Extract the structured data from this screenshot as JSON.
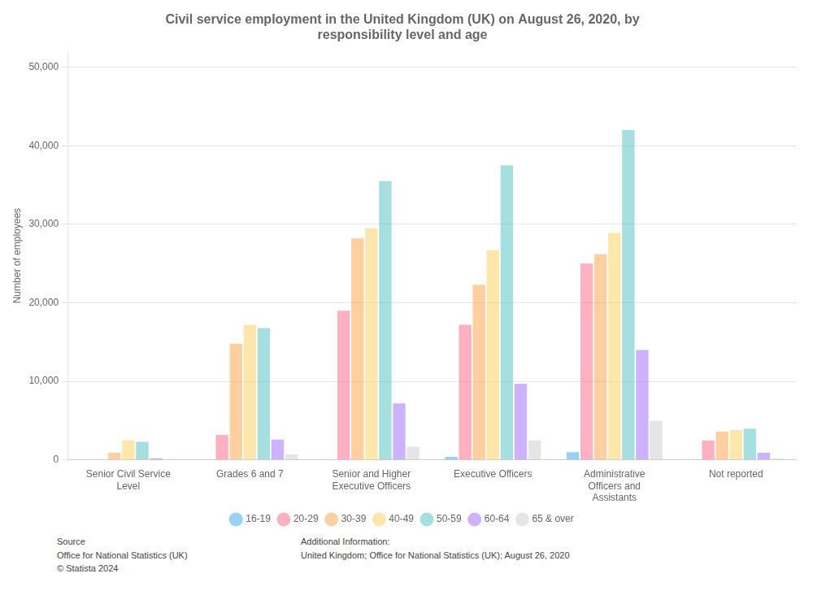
{
  "chart_data": {
    "type": "bar",
    "title": "Civil service employment in the United Kingdom (UK) on August 26, 2020, by\nresponsibility level and age",
    "y_label": "Number of employees",
    "categories": [
      "Senior Civil Service\nLevel",
      "Grades 6 and 7",
      "Senior and Higher\nExecutive Officers",
      "Executive Officers",
      "Administrative\nOfficers and\nAssistants",
      "Not reported"
    ],
    "series": [
      {
        "name": "16-19",
        "values": [
          0,
          0,
          0,
          400,
          1000,
          0
        ]
      },
      {
        "name": "20-29",
        "values": [
          0,
          3200,
          19000,
          17200,
          25000,
          2500
        ]
      },
      {
        "name": "30-39",
        "values": [
          900,
          14800,
          28200,
          22300,
          26200,
          3600
        ]
      },
      {
        "name": "40-49",
        "values": [
          2500,
          17200,
          29500,
          26700,
          28900,
          3800
        ]
      },
      {
        "name": "50-59",
        "values": [
          2300,
          16800,
          35500,
          37500,
          42000,
          4000
        ]
      },
      {
        "name": "60-64",
        "values": [
          200,
          2600,
          7200,
          9700,
          14000,
          900
        ]
      },
      {
        "name": "65 & over",
        "values": [
          100,
          700,
          1700,
          2500,
          5000,
          200
        ]
      }
    ],
    "ylim": [
      0,
      52000
    ],
    "yticks": [
      0,
      {
        "value": 10000,
        "label": "10,000"
      },
      {
        "value": 20000,
        "label": "20,000"
      },
      {
        "value": 30000,
        "label": "30,000"
      },
      {
        "value": 40000,
        "label": "40,000"
      },
      {
        "value": 50000,
        "label": "50,000"
      }
    ],
    "grid": true,
    "legend": "bottom",
    "annotations": [
      "Source\nOffice for National Statistics (UK)\n© Statista 2024",
      "Additional Information:\nUnited Kingdom; Office for National Statistics (UK); August 26, 2020"
    ]
  }
}
